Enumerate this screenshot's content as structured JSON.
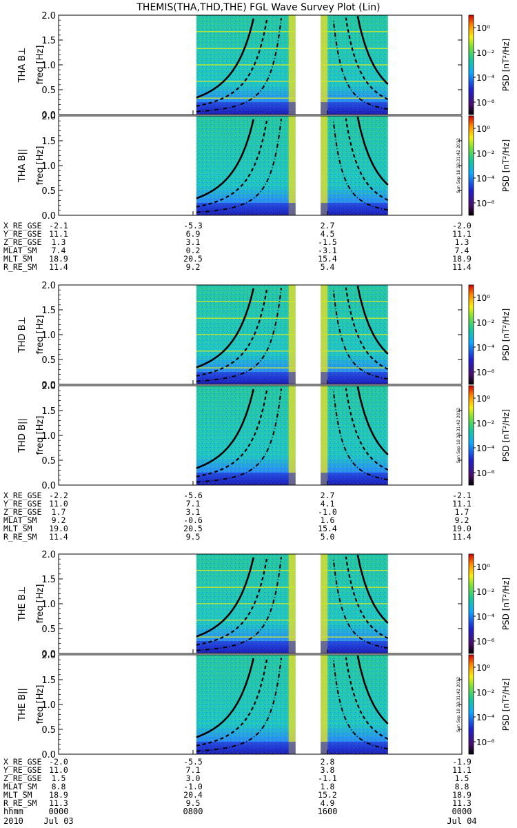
{
  "chart_data": {
    "type": "heatmap",
    "title": "THEMIS(THA,THD,THE) FGL Wave Survey Plot (Lin)",
    "x_axis": {
      "ticks": [
        "0000",
        "0800",
        "1600",
        "0000"
      ],
      "dates": [
        "Jul 03",
        "",
        "",
        "Jul 04"
      ],
      "year": "2010",
      "row_label": "hhmm",
      "range_hours": [
        0,
        24
      ]
    },
    "y_axis": {
      "label": "freq [Hz]",
      "ticks": [
        "0.0",
        "0.5",
        "1.0",
        "1.5",
        "2.0"
      ],
      "ylim": [
        0,
        2.0
      ]
    },
    "colorbar": {
      "label": "PSD [nT²/Hz]",
      "ticks": [
        "10⁰",
        "10⁻²",
        "10⁻⁴",
        "10⁻⁶"
      ],
      "exponents": [
        0,
        -2,
        -4,
        -6
      ],
      "range_exp": [
        -7,
        1
      ]
    },
    "data_coverage_hours": [
      [
        8.2,
        14.1
      ],
      [
        15.6,
        19.6
      ]
    ],
    "stamp": "Sun Sep 18 23:31:42 2012",
    "panel_labels": [
      "THA B⊥",
      "THA B||",
      "THD B⊥",
      "THD B||",
      "THE B⊥",
      "THE B||"
    ],
    "ephemeris": [
      {
        "rows": [
          {
            "label": "X_RE_GSE",
            "values": [
              "-2.1",
              "-5.3",
              "2.7",
              "-2.0"
            ]
          },
          {
            "label": "Y_RE_GSE",
            "values": [
              "11.1",
              "6.9",
              "4.5",
              "11.1"
            ]
          },
          {
            "label": "Z_RE_GSE",
            "values": [
              "1.3",
              "3.1",
              "-1.5",
              "1.3"
            ]
          },
          {
            "label": "MLAT_SM",
            "values": [
              "7.4",
              "0.2",
              "-3.1",
              "7.4"
            ]
          },
          {
            "label": "MLT_SM",
            "values": [
              "18.9",
              "20.5",
              "15.4",
              "18.9"
            ]
          },
          {
            "label": "R_RE_SM",
            "values": [
              "11.4",
              "9.2",
              "5.4",
              "11.4"
            ]
          }
        ]
      },
      {
        "rows": [
          {
            "label": "X_RE_GSE",
            "values": [
              "-2.2",
              "-5.6",
              "2.7",
              "-2.1"
            ]
          },
          {
            "label": "Y_RE_GSE",
            "values": [
              "11.0",
              "7.1",
              "4.1",
              "11.1"
            ]
          },
          {
            "label": "Z_RE_GSE",
            "values": [
              "1.7",
              "3.1",
              "-1.0",
              "1.7"
            ]
          },
          {
            "label": "MLAT_SM",
            "values": [
              "9.2",
              "-0.6",
              "1.6",
              "9.2"
            ]
          },
          {
            "label": "MLT_SM",
            "values": [
              "19.0",
              "20.5",
              "15.4",
              "19.0"
            ]
          },
          {
            "label": "R_RE_SM",
            "values": [
              "11.4",
              "9.5",
              "5.0",
              "11.4"
            ]
          }
        ]
      },
      {
        "rows": [
          {
            "label": "X_RE_GSE",
            "values": [
              "-2.0",
              "-5.5",
              "2.8",
              "-1.9"
            ]
          },
          {
            "label": "Y_RE_GSE",
            "values": [
              "11.0",
              "7.1",
              "3.8",
              "11.1"
            ]
          },
          {
            "label": "Z_RE_GSE",
            "values": [
              "1.5",
              "3.0",
              "-1.1",
              "1.5"
            ]
          },
          {
            "label": "MLAT_SM",
            "values": [
              "8.8",
              "-1.0",
              "1.8",
              "8.8"
            ]
          },
          {
            "label": "MLT_SM",
            "values": [
              "18.9",
              "20.4",
              "15.2",
              "18.9"
            ]
          },
          {
            "label": "R_RE_SM",
            "values": [
              "11.3",
              "9.5",
              "4.9",
              "11.3"
            ]
          }
        ]
      }
    ]
  }
}
